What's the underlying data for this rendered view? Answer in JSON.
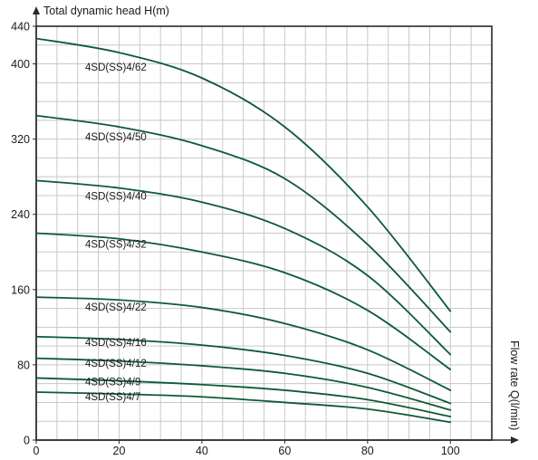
{
  "chart_data": {
    "type": "line",
    "xlabel": "Flow rate Q(l/min)",
    "ylabel": "Total dynamic head H(m)",
    "xlim": [
      0,
      110
    ],
    "ylim": [
      0,
      440
    ],
    "x_ticks": [
      "0",
      "20",
      "40",
      "60",
      "80",
      "100"
    ],
    "y_ticks": [
      "0",
      "80",
      "160",
      "240",
      "320",
      "400",
      "440"
    ],
    "grid": true,
    "line_color": "#0e5a36",
    "series": [
      {
        "name": "4SD(SS)4/62",
        "x": [
          0,
          20,
          40,
          60,
          80,
          100
        ],
        "y": [
          427,
          412,
          385,
          333,
          248,
          137
        ]
      },
      {
        "name": "4SD(SS)4/50",
        "x": [
          0,
          20,
          40,
          60,
          80,
          100
        ],
        "y": [
          345,
          333,
          313,
          278,
          208,
          115
        ]
      },
      {
        "name": "4SD(SS)4/40",
        "x": [
          0,
          20,
          40,
          60,
          80,
          100
        ],
        "y": [
          276,
          268,
          253,
          225,
          175,
          91
        ]
      },
      {
        "name": "4SD(SS)4/32",
        "x": [
          0,
          20,
          40,
          60,
          80,
          100
        ],
        "y": [
          220,
          214,
          200,
          178,
          138,
          75
        ]
      },
      {
        "name": "4SD(SS)4/22",
        "x": [
          0,
          20,
          40,
          60,
          80,
          100
        ],
        "y": [
          152,
          149,
          141,
          124,
          96,
          53
        ]
      },
      {
        "name": "4SD(SS)4/16",
        "x": [
          0,
          20,
          40,
          60,
          80,
          100
        ],
        "y": [
          110,
          107,
          101,
          90,
          71,
          39
        ]
      },
      {
        "name": "4SD(SS)4/12",
        "x": [
          0,
          20,
          40,
          60,
          80,
          100
        ],
        "y": [
          87,
          84,
          79,
          71,
          56,
          32
        ]
      },
      {
        "name": "4SD(SS)4/9",
        "x": [
          0,
          20,
          40,
          60,
          80,
          100
        ],
        "y": [
          66,
          63,
          59,
          53,
          43,
          25
        ]
      },
      {
        "name": "4SD(SS)4/7",
        "x": [
          0,
          20,
          40,
          60,
          80,
          100
        ],
        "y": [
          51,
          49,
          46,
          40,
          33,
          19
        ]
      }
    ]
  }
}
